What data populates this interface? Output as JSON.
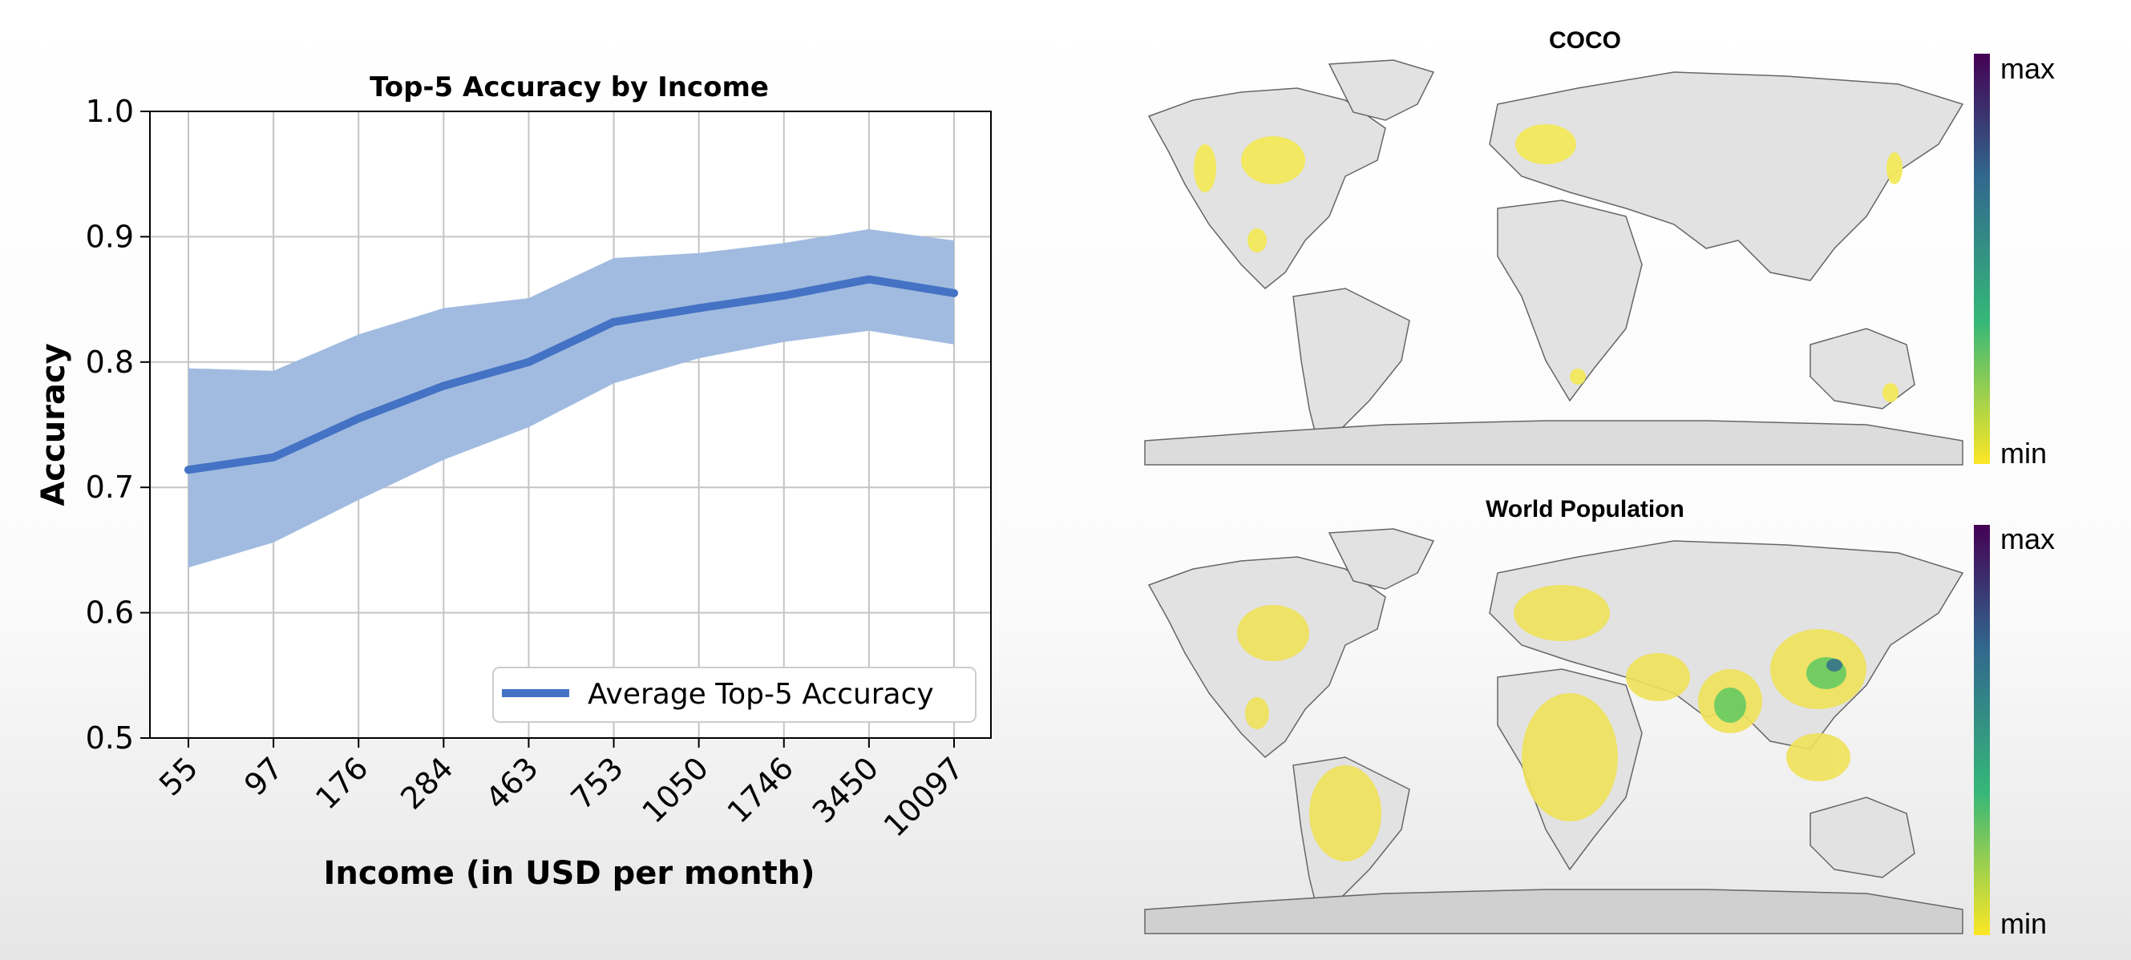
{
  "chart_data": [
    {
      "type": "line",
      "title": "Top-5 Accuracy by Income",
      "xlabel": "Income (in USD per month)",
      "ylabel": "Accuracy",
      "categories": [
        "55",
        "97",
        "176",
        "284",
        "463",
        "753",
        "1050",
        "1746",
        "3450",
        "10097"
      ],
      "ylim": [
        0.5,
        1.0
      ],
      "yticks": [
        "0.5",
        "0.6",
        "0.7",
        "0.8",
        "0.9",
        "1.0"
      ],
      "grid": true,
      "legend_position": "bottom-right",
      "series": [
        {
          "name": "Average Top-5 Accuracy",
          "values": [
            0.714,
            0.724,
            0.755,
            0.781,
            0.8,
            0.832,
            0.843,
            0.853,
            0.866,
            0.855
          ],
          "band_upper": [
            0.795,
            0.793,
            0.822,
            0.843,
            0.851,
            0.883,
            0.887,
            0.895,
            0.906,
            0.897
          ],
          "band_lower": [
            0.636,
            0.656,
            0.69,
            0.722,
            0.748,
            0.783,
            0.803,
            0.816,
            0.825,
            0.814
          ],
          "color": "#4472c4",
          "band_color": "#a1bbe0"
        }
      ]
    },
    {
      "type": "heatmap",
      "title": "COCO",
      "colorbar": {
        "max_label": "max",
        "min_label": "min"
      },
      "colormap": [
        "#440154",
        "#31688e",
        "#35b779",
        "#fde725"
      ]
    },
    {
      "type": "heatmap",
      "title": "World Population",
      "colorbar": {
        "max_label": "max",
        "min_label": "min"
      },
      "colormap": [
        "#440154",
        "#31688e",
        "#35b779",
        "#fde725"
      ]
    }
  ]
}
